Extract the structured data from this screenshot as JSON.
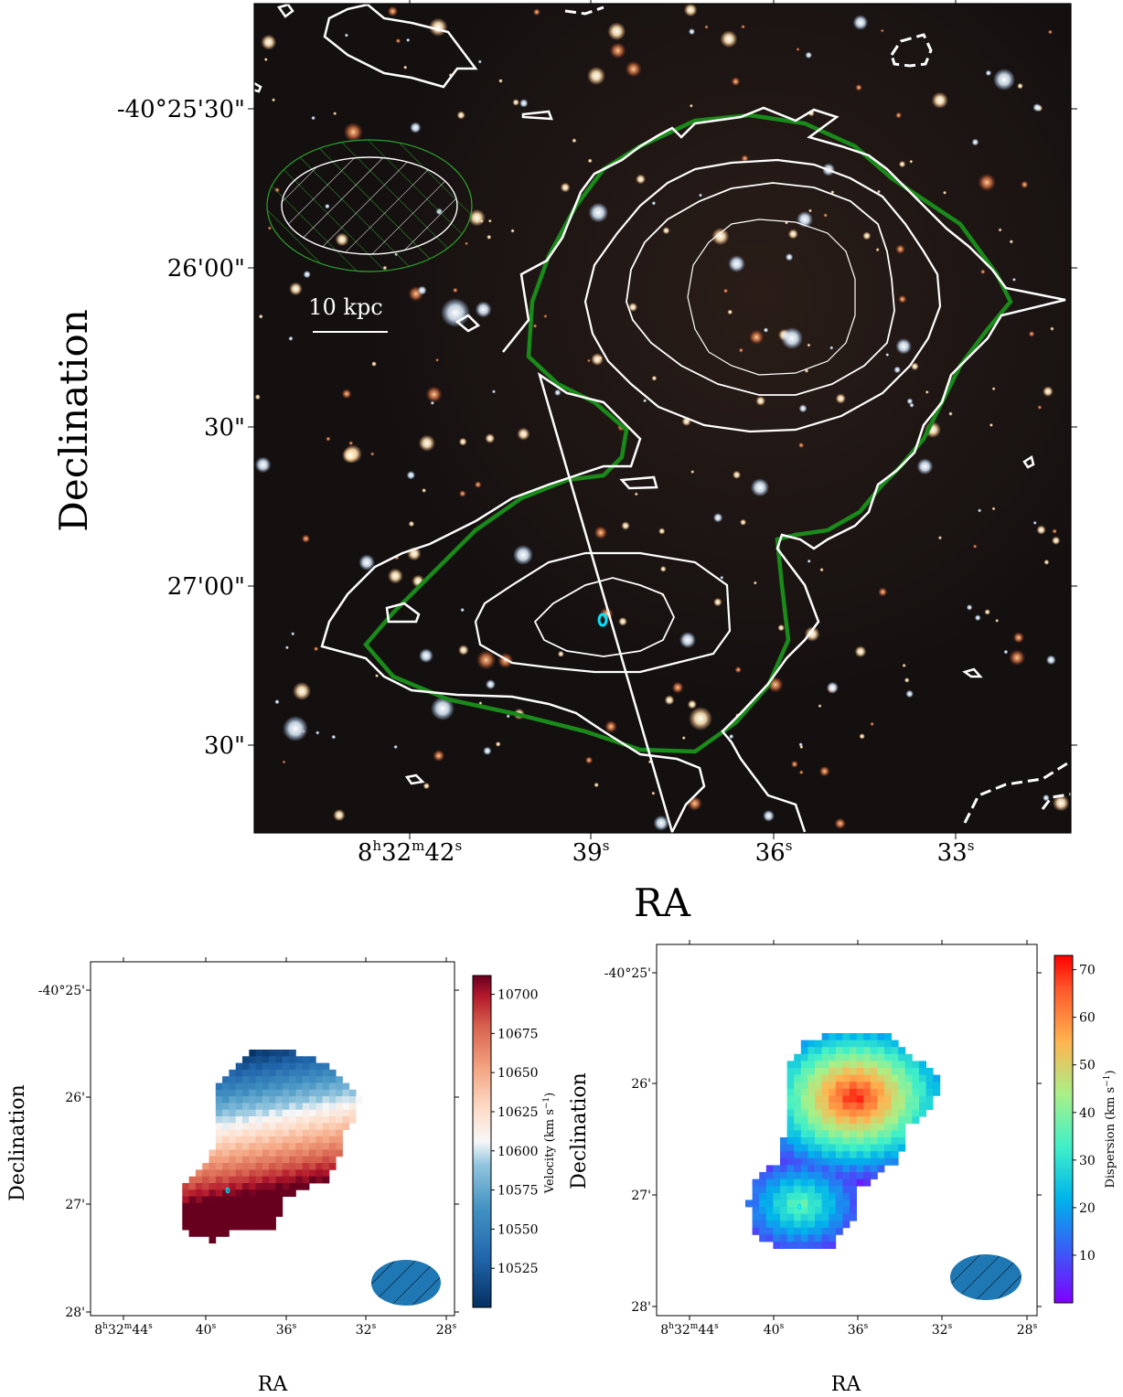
{
  "chart_data": [
    {
      "type": "image-contour",
      "panel": "optical image with HI contours",
      "xlabel": "RA",
      "ylabel": "Declination",
      "x_ticks": [
        "8h32m42s",
        "39s",
        "36s",
        "33s"
      ],
      "y_ticks": [
        "-40°25'30\"",
        "26'00\"",
        "30\"",
        "27'00\"",
        "30\""
      ],
      "scale_bar": "10 kpc",
      "contour_colors": {
        "hi": "#ffffff",
        "outer": "#1a8a1a",
        "marker": "#00e5ff"
      },
      "features": [
        "beam ellipse (hatched)",
        "cyan marker at southern galaxy"
      ]
    },
    {
      "type": "heatmap",
      "panel": "velocity field",
      "xlabel": "RA",
      "ylabel": "Declination",
      "x_ticks": [
        "8h32m44s",
        "40s",
        "36s",
        "32s",
        "28s"
      ],
      "y_ticks": [
        "-40°25'",
        "26'",
        "27'",
        "28'"
      ],
      "colorbar_label": "Velocity (km s",
      "colorbar_label_sup": "−1",
      "colorbar_ticks": [
        10525,
        10550,
        10575,
        10600,
        10625,
        10650,
        10675,
        10700
      ],
      "colorbar_range": [
        10500,
        10712
      ],
      "colormap": "RdBu_r"
    },
    {
      "type": "heatmap",
      "panel": "velocity dispersion",
      "xlabel": "RA",
      "ylabel": "Declination",
      "x_ticks": [
        "8h32m44s",
        "40s",
        "36s",
        "32s",
        "28s"
      ],
      "y_ticks": [
        "-40°25'",
        "26'",
        "27'",
        "28'"
      ],
      "colorbar_label": "Dispersion (km s",
      "colorbar_label_sup": "−1",
      "colorbar_ticks": [
        10,
        20,
        30,
        40,
        50,
        60,
        70
      ],
      "colorbar_range": [
        0,
        73
      ],
      "colormap": "rainbow"
    }
  ]
}
